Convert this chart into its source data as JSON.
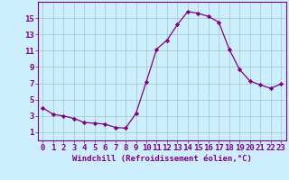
{
  "x": [
    0,
    1,
    2,
    3,
    4,
    5,
    6,
    7,
    8,
    9,
    10,
    11,
    12,
    13,
    14,
    15,
    16,
    17,
    18,
    19,
    20,
    21,
    22,
    23
  ],
  "y": [
    4.0,
    3.2,
    3.0,
    2.7,
    2.2,
    2.1,
    2.0,
    1.6,
    1.5,
    3.3,
    7.2,
    11.2,
    12.3,
    14.2,
    15.8,
    15.6,
    15.2,
    14.5,
    11.2,
    8.7,
    7.3,
    6.8,
    6.4,
    6.9
  ],
  "line_color": "#800080",
  "marker": "D",
  "marker_size": 2.2,
  "bg_color": "#cceeff",
  "grid_color": "#aacccc",
  "xlabel": "Windchill (Refroidissement éolien,°C)",
  "xlabel_fontsize": 6.5,
  "tick_fontsize": 6.5,
  "ylim": [
    0,
    17
  ],
  "xlim": [
    -0.5,
    23.5
  ],
  "yticks": [
    1,
    3,
    5,
    7,
    9,
    11,
    13,
    15
  ],
  "xticks": [
    0,
    1,
    2,
    3,
    4,
    5,
    6,
    7,
    8,
    9,
    10,
    11,
    12,
    13,
    14,
    15,
    16,
    17,
    18,
    19,
    20,
    21,
    22,
    23
  ]
}
